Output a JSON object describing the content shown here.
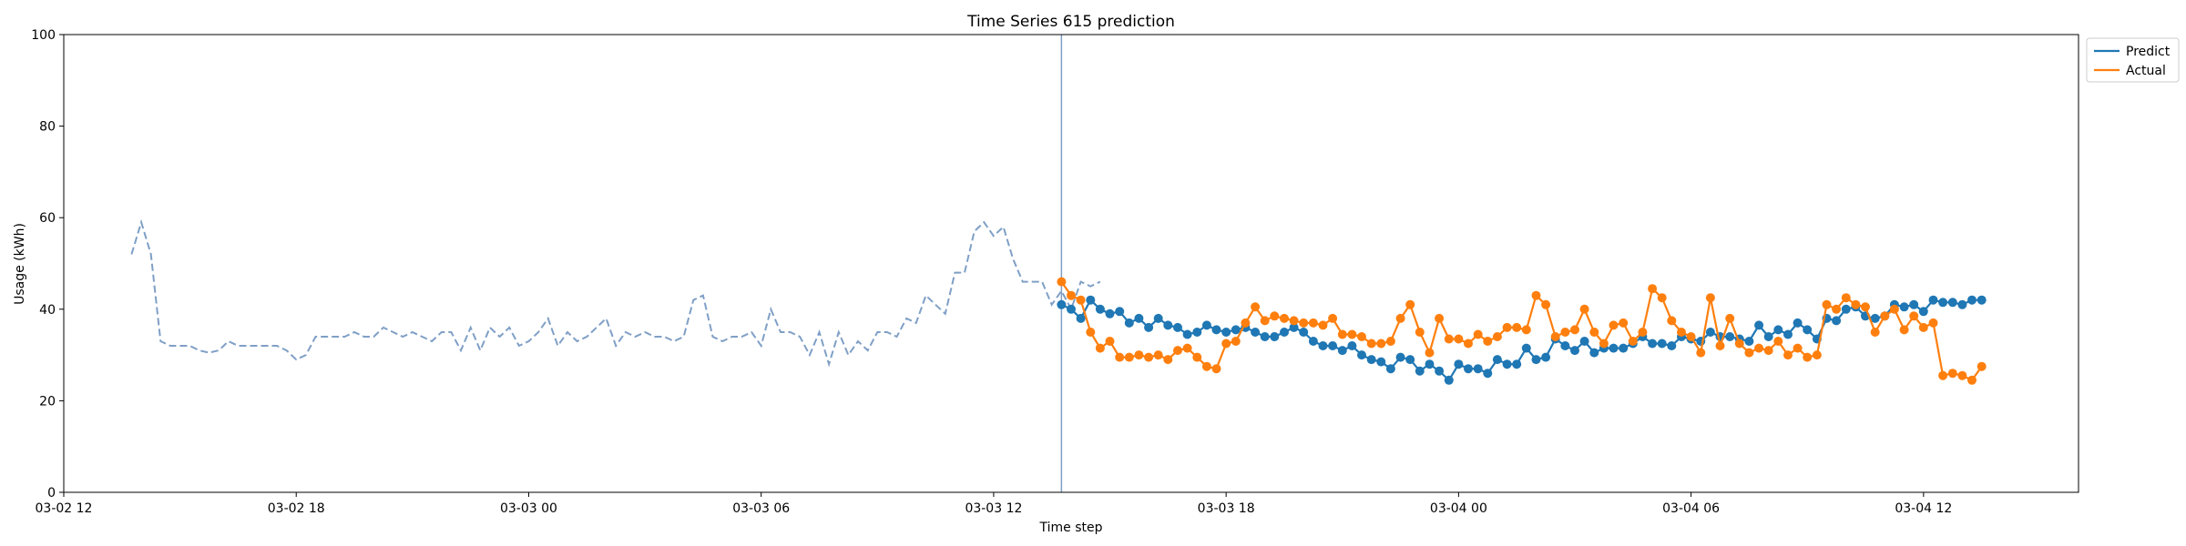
{
  "chart_data": {
    "type": "line",
    "title": "Time Series 615 prediction",
    "xlabel": "Time step",
    "ylabel": "Usage (kWh)",
    "ylim": [
      0,
      100
    ],
    "yticks": [
      0,
      20,
      40,
      60,
      80,
      100
    ],
    "xlim": [
      "03-02 12:00",
      "03-04 16:00"
    ],
    "xticks": [
      {
        "t": "03-02 12:00",
        "label": "03-02 12"
      },
      {
        "t": "03-02 18:00",
        "label": "03-02 18"
      },
      {
        "t": "03-03 00:00",
        "label": "03-03 00"
      },
      {
        "t": "03-03 06:00",
        "label": "03-03 06"
      },
      {
        "t": "03-03 12:00",
        "label": "03-03 12"
      },
      {
        "t": "03-03 18:00",
        "label": "03-03 18"
      },
      {
        "t": "03-04 00:00",
        "label": "03-04 00"
      },
      {
        "t": "03-04 06:00",
        "label": "03-04 06"
      },
      {
        "t": "03-04 12:00",
        "label": "03-04 12"
      }
    ],
    "step_minutes": 15,
    "grid": false,
    "legend_position": "outside top-right",
    "split_time": "03-03 13:45",
    "history": {
      "start": "03-02 13:45",
      "color": "#7f9fc6",
      "values": [
        52,
        59,
        52,
        33,
        32,
        32,
        32,
        31,
        30.5,
        31,
        33,
        32,
        32,
        32,
        32,
        32,
        31,
        29,
        30,
        34,
        34,
        34,
        34,
        35,
        34,
        34,
        36,
        35,
        34,
        35,
        34,
        33,
        35,
        35,
        31,
        36,
        31,
        36,
        34,
        36,
        32,
        33,
        35,
        38,
        32,
        35,
        33,
        34,
        36,
        38,
        32,
        35,
        34,
        35,
        34,
        34,
        33,
        34,
        42,
        43,
        34,
        33,
        34,
        34,
        35,
        32,
        40,
        35,
        35,
        34,
        30,
        35,
        28,
        35,
        30,
        33,
        31,
        35,
        35,
        34,
        38,
        37,
        43,
        41,
        39,
        48,
        48,
        57,
        59,
        56,
        58,
        51,
        46,
        46,
        46,
        41,
        44,
        40,
        46,
        45,
        46
      ]
    },
    "series": [
      {
        "name": "Predict",
        "color": "#1f77b4",
        "start": "03-03 13:45",
        "values": [
          41,
          40,
          38,
          42,
          40,
          39,
          39.5,
          37,
          38,
          36,
          38,
          36.5,
          36,
          34.5,
          35,
          36.5,
          35.5,
          35,
          35.5,
          36,
          35,
          34,
          34,
          35,
          36,
          35,
          33,
          32,
          32,
          31,
          32,
          30,
          29,
          28.5,
          27,
          29.5,
          29,
          26.5,
          28,
          26.5,
          24.5,
          28,
          27,
          27,
          26,
          29,
          28,
          28,
          31.5,
          29,
          29.5,
          33.5,
          32,
          31,
          33,
          30.5,
          31.5,
          31.5,
          31.5,
          32.5,
          34,
          32.5,
          32.5,
          32,
          34,
          33.5,
          33,
          35,
          34,
          34,
          33.5,
          33,
          36.5,
          34,
          35.5,
          34.5,
          37,
          35.5,
          33.5,
          38,
          37.5,
          40,
          40.5,
          38.5,
          38,
          38.5,
          41,
          40.5,
          41,
          39.5,
          42,
          41.5,
          41.5,
          41,
          42,
          42
        ]
      },
      {
        "name": "Actual",
        "color": "#ff7f0e",
        "start": "03-03 13:45",
        "values": [
          46,
          43,
          42,
          35,
          31.5,
          33,
          29.5,
          29.5,
          30,
          29.5,
          30,
          29,
          31,
          31.5,
          29.5,
          27.5,
          27,
          32.5,
          33,
          37,
          40.5,
          37.5,
          38.5,
          38,
          37.5,
          37,
          37,
          36.5,
          38,
          34.5,
          34.5,
          34,
          32.5,
          32.5,
          33,
          38,
          41,
          35,
          30.5,
          38,
          33.5,
          33.5,
          32.5,
          34.5,
          33,
          34,
          36,
          36,
          35.5,
          43,
          41,
          34,
          35,
          35.5,
          40,
          35,
          32.5,
          36.5,
          37,
          33,
          35,
          44.5,
          42.5,
          37.5,
          35,
          34,
          30.5,
          42.5,
          32,
          38,
          32.5,
          30.5,
          31.5,
          31,
          33,
          30,
          31.5,
          29.5,
          30,
          41,
          40,
          42.5,
          41,
          40.5,
          35,
          38.5,
          40,
          35.5,
          38.5,
          36,
          37,
          25.5,
          26,
          25.5,
          24.5,
          27.5
        ]
      }
    ],
    "colors": {
      "split_line": "#7f9fc6",
      "axes": "#000000"
    }
  }
}
